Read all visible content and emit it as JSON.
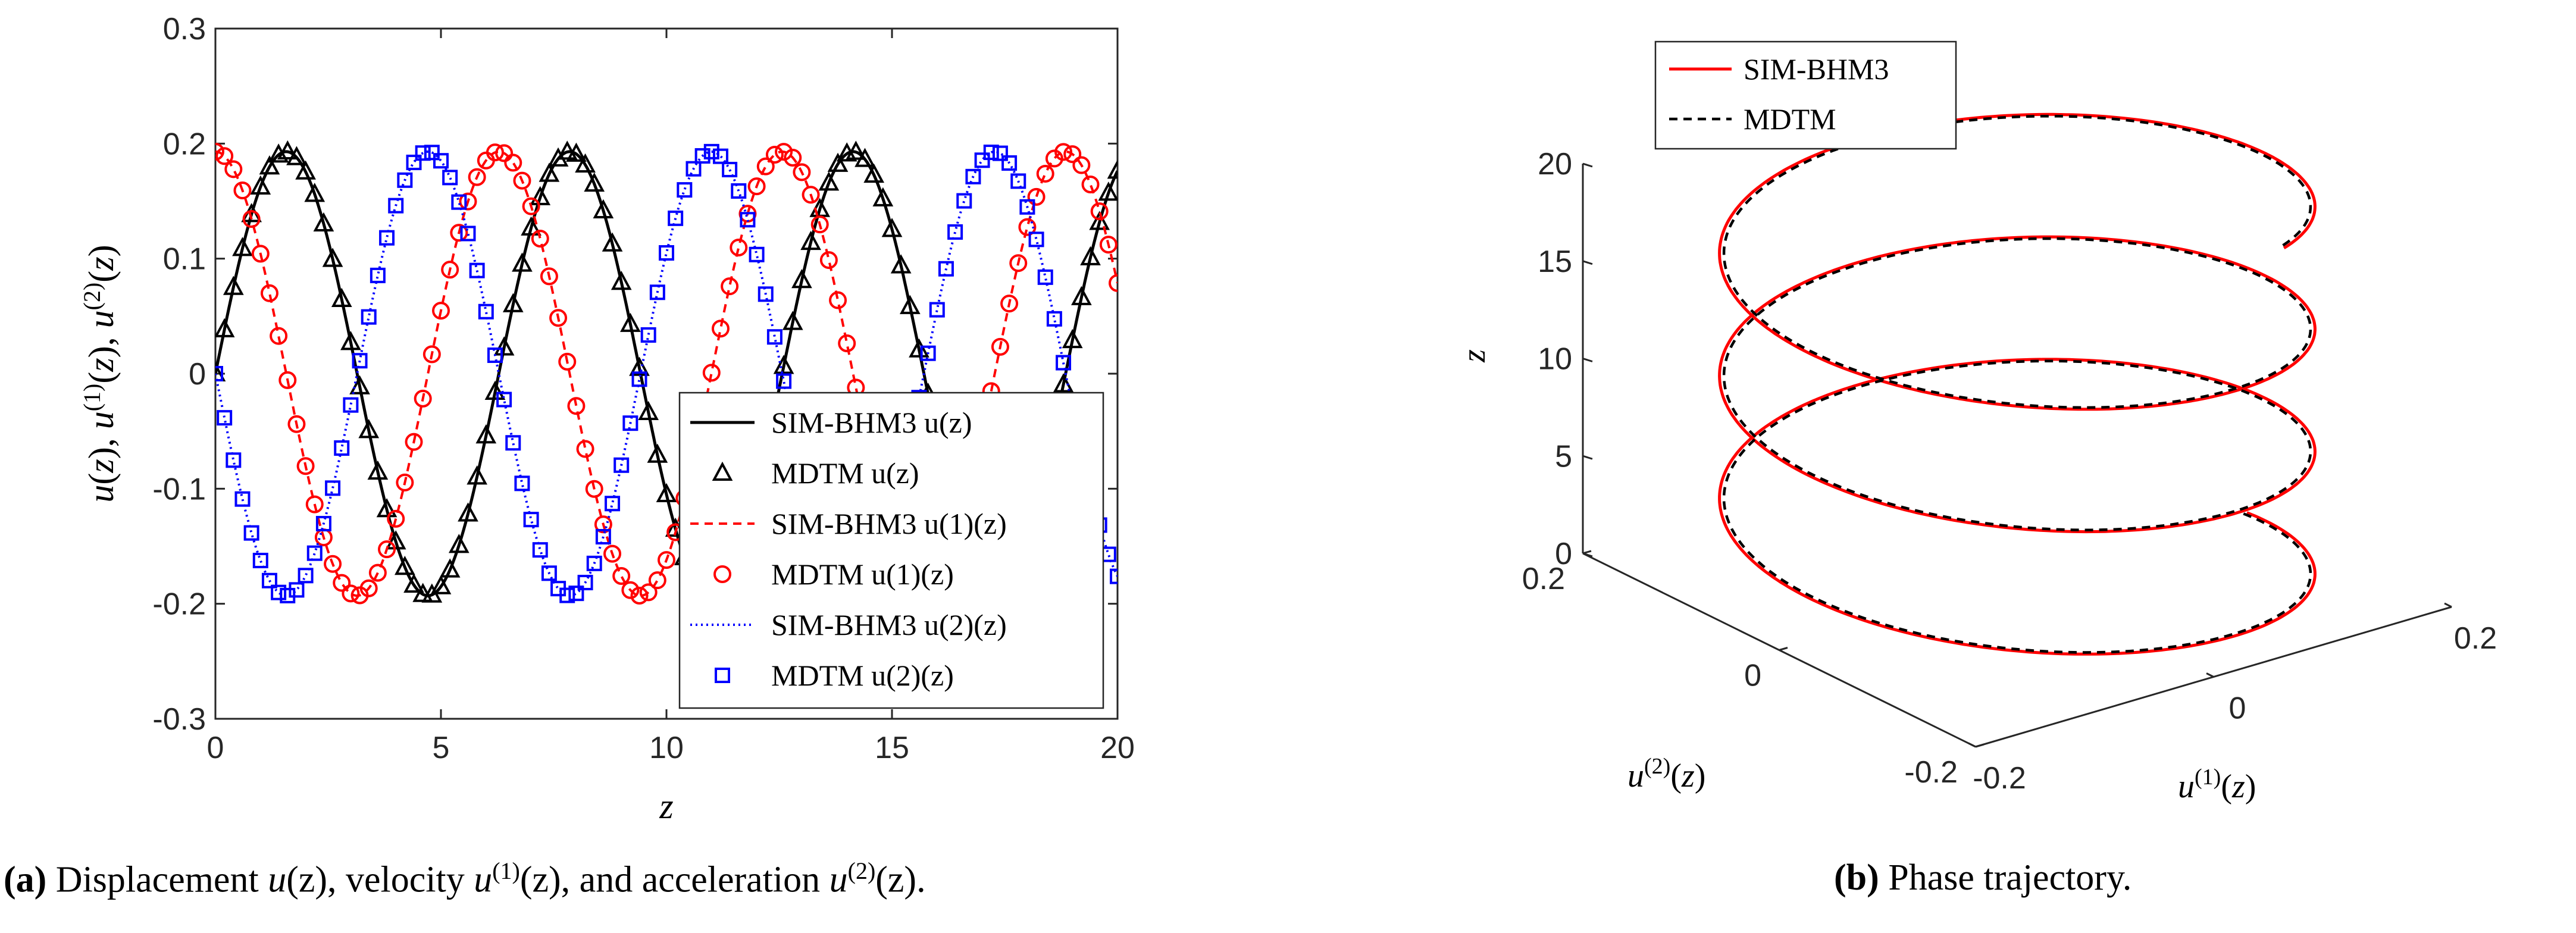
{
  "chart_data": [
    {
      "type": "line",
      "panel": "a",
      "xlabel": "z",
      "ylabel": "u(z), u(1)(z), u(2)(z)",
      "xlim": [
        0,
        20
      ],
      "ylim": [
        -0.3,
        0.3
      ],
      "xticks": [
        "0",
        "5",
        "10",
        "15",
        "20"
      ],
      "yticks": [
        "-0.3",
        "-0.2",
        "-0.1",
        "0",
        "0.1",
        "0.2",
        "0.3"
      ],
      "grid": false,
      "legend_placement": "lower-right",
      "legend": [
        "SIM-BHM3 u(z)",
        "MDTM u(z)",
        "SIM-BHM3 u(1)(z)",
        "MDTM u(1)(z)",
        "SIM-BHM3 u(2)(z)",
        "MDTM u(2)(z)"
      ],
      "model": {
        "amplitude": 0.193,
        "angular_frequency": 1.0,
        "z_range": [
          0,
          20
        ],
        "marker_step": 0.2
      },
      "series": [
        {
          "name": "SIM-BHM3 u(z)",
          "style": "solid",
          "color": "#000000",
          "formula": "A*sin(w*z)"
        },
        {
          "name": "MDTM u(z)",
          "style": "triangle",
          "color": "#000000",
          "formula": "A*sin(w*z)"
        },
        {
          "name": "SIM-BHM3 u(1)(z)",
          "style": "dashed",
          "color": "#ff0000",
          "formula": "A*cos(w*z)"
        },
        {
          "name": "MDTM u(1)(z)",
          "style": "circle",
          "color": "#ff0000",
          "formula": "A*cos(w*z)"
        },
        {
          "name": "SIM-BHM3 u(2)(z)",
          "style": "dotted",
          "color": "#0000ff",
          "formula": "-A*sin(w*z)"
        },
        {
          "name": "MDTM u(2)(z)",
          "style": "square",
          "color": "#0000ff",
          "formula": "-A*sin(w*z)"
        }
      ]
    },
    {
      "type": "line3d",
      "panel": "b",
      "xlabel": "u(1)(z)",
      "ylabel": "u(2)(z)",
      "zlabel": "z",
      "xlim": [
        -0.2,
        0.2
      ],
      "ylim": [
        -0.2,
        0.2
      ],
      "zlim": [
        0,
        20
      ],
      "xticks": [
        "-0.2",
        "0",
        "0.2"
      ],
      "yticks": [
        "-0.2",
        "0",
        "0.2"
      ],
      "zticks": [
        "0",
        "5",
        "10",
        "15",
        "20"
      ],
      "legend_placement": "top-left",
      "legend": [
        "SIM-BHM3",
        "MDTM"
      ],
      "series": [
        {
          "name": "SIM-BHM3",
          "style": "solid",
          "color": "#ff0000"
        },
        {
          "name": "MDTM",
          "style": "dashed",
          "color": "#000000"
        }
      ]
    }
  ],
  "captions": {
    "a": {
      "label": "(a)",
      "parts": [
        "Displacement",
        "u",
        "(z), velocity",
        "u",
        "(1)",
        "(z), and acceleration",
        "u",
        "(2)",
        "(z)."
      ]
    },
    "b": {
      "label": "(b)",
      "text": "Phase trajectory."
    }
  }
}
